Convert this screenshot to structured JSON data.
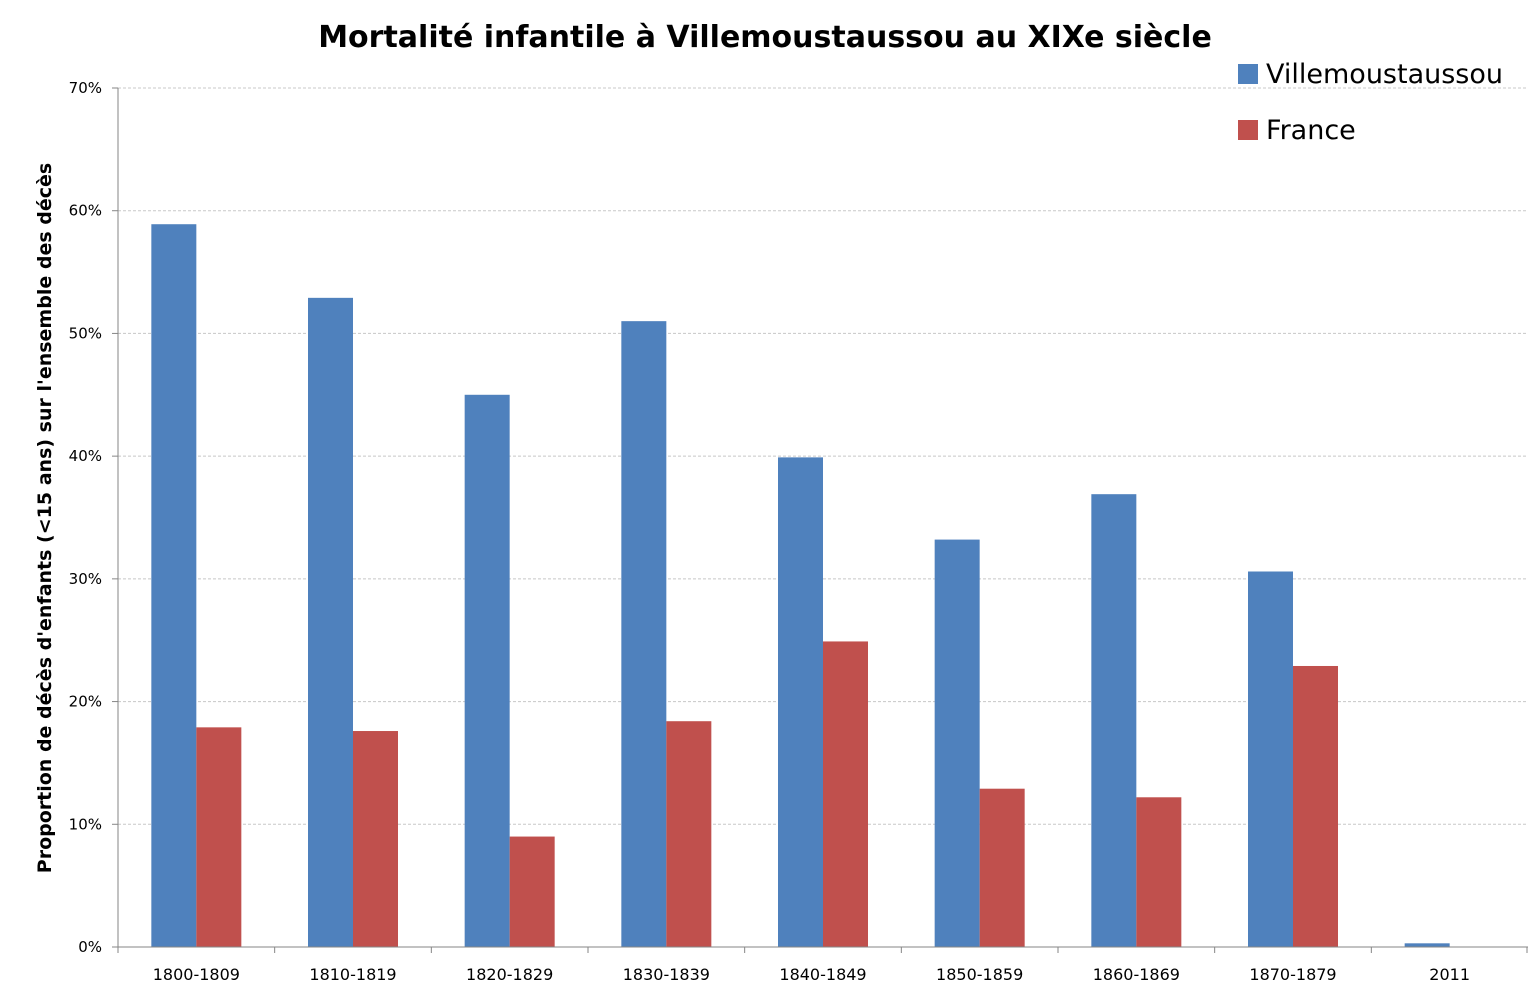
{
  "chart_data": {
    "type": "bar",
    "title": "Mortalité infantile à Villemoustaussou au XIXe siècle",
    "ylabel": "Proportion de décès d'enfants (<15 ans) sur l'ensemble des décès",
    "xlabel": "",
    "categories": [
      "1800-1809",
      "1810-1819",
      "1820-1829",
      "1830-1839",
      "1840-1849",
      "1850-1859",
      "1860-1869",
      "1870-1879",
      "2011"
    ],
    "series": [
      {
        "name": "Villemoustaussou",
        "color": "#4f81bd",
        "values": [
          58.9,
          52.9,
          45.0,
          51.0,
          39.9,
          33.2,
          36.9,
          30.6,
          0.3
        ]
      },
      {
        "name": "France",
        "color": "#c0504d",
        "values": [
          17.9,
          17.6,
          9.0,
          18.4,
          24.9,
          12.9,
          12.2,
          22.9,
          0
        ]
      }
    ],
    "ylim": [
      0,
      70
    ],
    "yticks": [
      0,
      10,
      20,
      30,
      40,
      50,
      60,
      70
    ],
    "ytick_labels": [
      "0%",
      "10%",
      "20%",
      "30%",
      "40%",
      "50%",
      "60%",
      "70%"
    ],
    "grid": true,
    "legend_position": "top-right"
  }
}
